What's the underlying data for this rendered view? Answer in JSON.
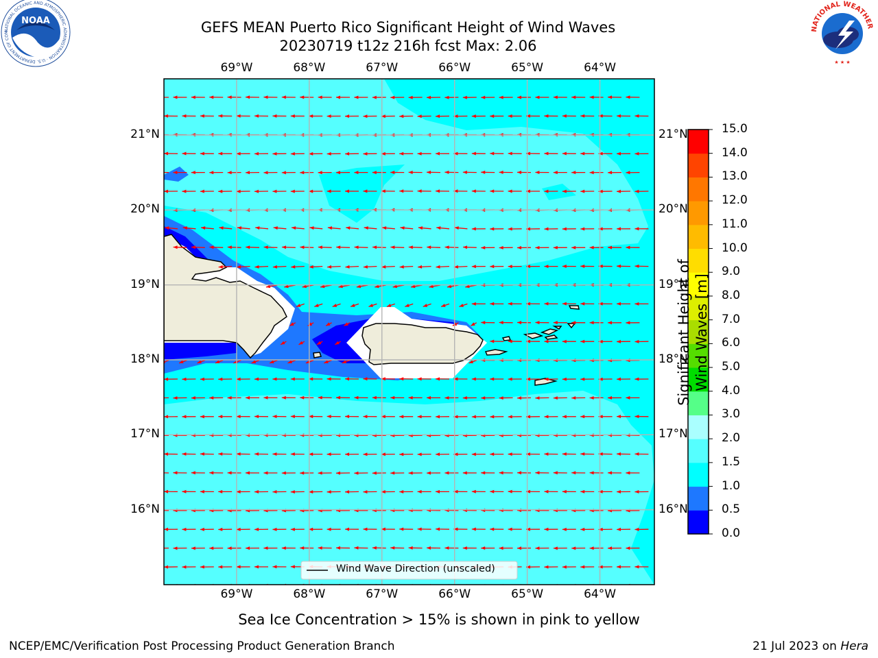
{
  "header": {
    "title_line1": "GEFS MEAN Puerto Rico Significant Height of Wind Waves",
    "title_line2": "20230719 t12z 216h fcst   Max: 2.06"
  },
  "logos": {
    "left": "NOAA",
    "left_ring": "NATIONAL OCEANIC AND ATMOSPHERIC ADMINISTRATION · U.S. DEPARTMENT OF COMMERCE",
    "right_ring": "NATIONAL WEATHER SERVICE"
  },
  "map": {
    "lon_labels": [
      "69°W",
      "68°W",
      "67°W",
      "66°W",
      "65°W",
      "64°W"
    ],
    "lat_labels": [
      "21°N",
      "20°N",
      "19°N",
      "18°N",
      "17°N",
      "16°N"
    ],
    "lon_range": [
      -70.0,
      -63.25
    ],
    "lat_range": [
      15.0,
      21.75
    ],
    "legend_label": "Wind Wave Direction (unscaled)",
    "colors": {
      "shade_0_05": "#0000ff",
      "shade_05_10": "#1e78ff",
      "shade_10_15": "#00ffff",
      "shade_15_20": "#55ffff",
      "land": "#efeddb",
      "arrow": "#ff0000",
      "grid": "#b4b4b4"
    }
  },
  "colorbar": {
    "title": "Significant Height of Wind Waves [m]",
    "ticks": [
      "0.0",
      "0.5",
      "1.0",
      "1.5",
      "2.0",
      "3.0",
      "4.0",
      "5.0",
      "6.0",
      "7.0",
      "8.0",
      "9.0",
      "10.0",
      "11.0",
      "12.0",
      "13.0",
      "14.0",
      "15.0"
    ],
    "colors": [
      "#0000ff",
      "#1e78ff",
      "#00ffff",
      "#55ffff",
      "#aaffff",
      "#55ff88",
      "#00dd00",
      "#55dd00",
      "#aadd00",
      "#ddee00",
      "#ffff00",
      "#ffdd00",
      "#ffbb00",
      "#ff9900",
      "#ff7700",
      "#ff4400",
      "#ff0000"
    ]
  },
  "subtitle": "Sea Ice Concentration > 15% is shown in pink to yellow",
  "footer": {
    "left": "NCEP/EMC/Verification Post Processing Product Generation Branch",
    "right_prefix": "21 Jul 2023 on ",
    "right_host": "Hera"
  }
}
